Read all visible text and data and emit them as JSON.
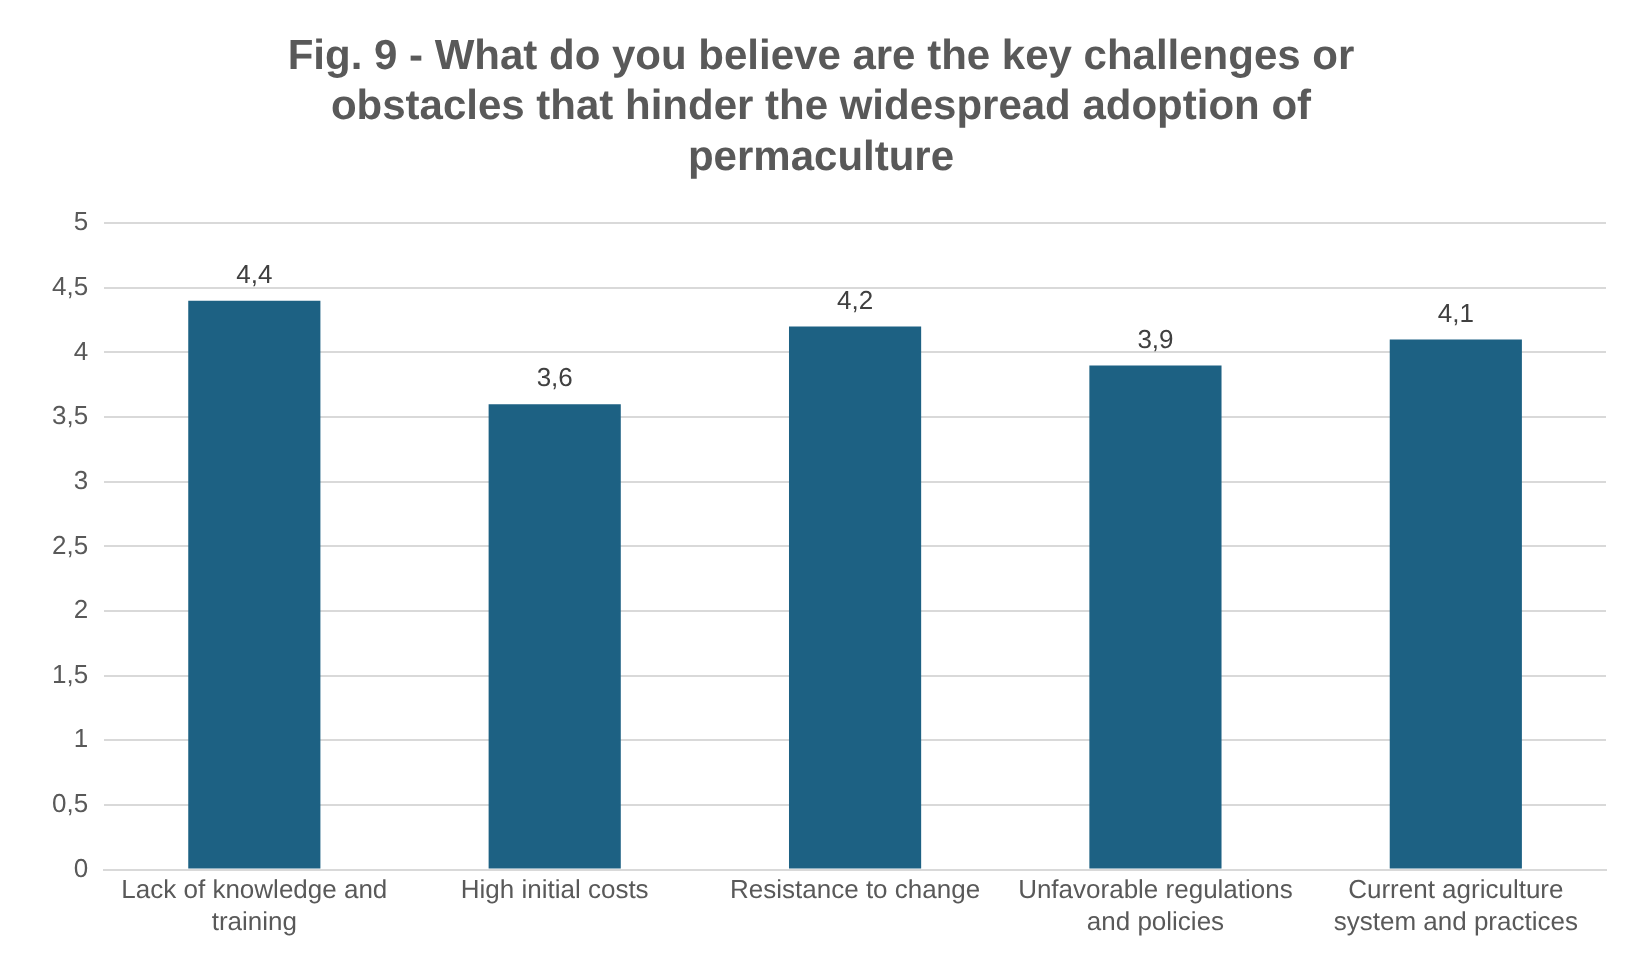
{
  "chart_data": {
    "type": "bar",
    "title": "Fig. 9 - What do you believe are the key challenges or obstacles that hinder the widespread adoption of permaculture",
    "categories": [
      "Lack of knowledge and training",
      "High initial costs",
      "Resistance to change",
      "Unfavorable regulations and policies",
      "Current agriculture system and practices"
    ],
    "values": [
      4.4,
      3.6,
      4.2,
      3.9,
      4.1
    ],
    "value_labels": [
      "4,4",
      "3,6",
      "4,2",
      "3,9",
      "4,1"
    ],
    "color": "#1d6183",
    "ylim": [
      0,
      5
    ],
    "yticks": [
      {
        "value": 0,
        "label": "0"
      },
      {
        "value": 0.5,
        "label": "0,5"
      },
      {
        "value": 1,
        "label": "1"
      },
      {
        "value": 1.5,
        "label": "1,5"
      },
      {
        "value": 2,
        "label": "2"
      },
      {
        "value": 2.5,
        "label": "2,5"
      },
      {
        "value": 3,
        "label": "3"
      },
      {
        "value": 3.5,
        "label": "3,5"
      },
      {
        "value": 4,
        "label": "4"
      },
      {
        "value": 4.5,
        "label": "4,5"
      },
      {
        "value": 5,
        "label": "5"
      }
    ],
    "grid": "y",
    "legend": false
  }
}
